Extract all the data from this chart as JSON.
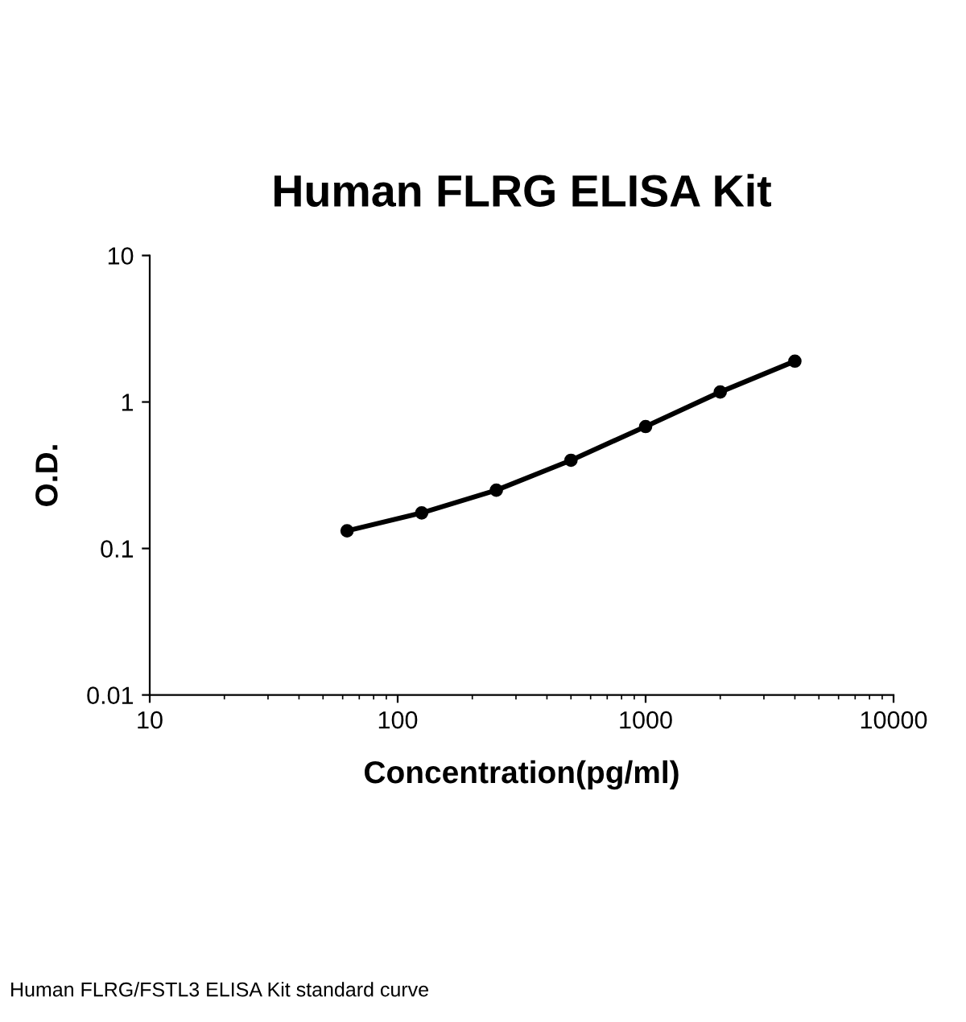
{
  "chart_data": {
    "type": "line",
    "title": "Human FLRG ELISA Kit",
    "xlabel": "Concentration(pg/ml)",
    "ylabel": "O.D.",
    "x": [
      62.5,
      125,
      250,
      500,
      1000,
      2000,
      4000
    ],
    "series": [
      {
        "color": "#000000",
        "values": [
          0.132,
          0.175,
          0.25,
          0.4,
          0.68,
          1.17,
          1.9
        ]
      }
    ],
    "log": "xy",
    "xlim": [
      10,
      10000
    ],
    "ylim": [
      0.01,
      10
    ],
    "xticks": [
      10,
      100,
      1000,
      10000
    ],
    "yticks": [
      0.01,
      0.1,
      1,
      10
    ],
    "marker": "circle",
    "line_style": "solid",
    "grid": false,
    "legend": false,
    "annotations": [
      "Human FLRG/FSTL3 ELISA Kit standard curve"
    ]
  }
}
